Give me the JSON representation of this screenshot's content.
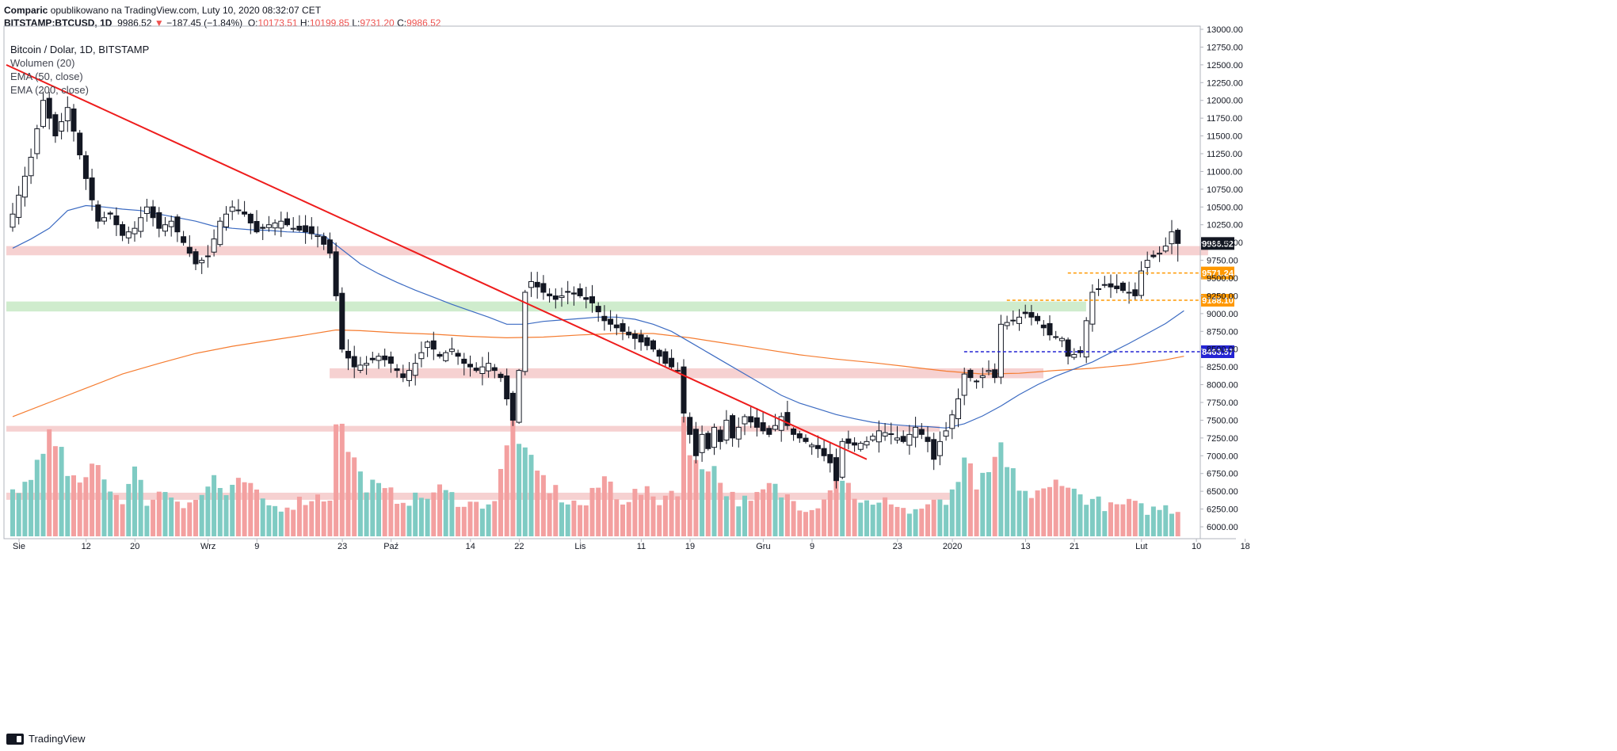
{
  "header": {
    "publisher": "Comparic",
    "published_text": "opublikowano na TradingView.com, Luty 10, 2020 08:32:07 CET",
    "symbol": "BITSTAMP:BTCUSD, 1D",
    "last": "9986.52",
    "arrow": "▼",
    "change": "−187.45 (−1.84%)",
    "o_label": "O:",
    "o": "10173.51",
    "h_label": "H:",
    "h": "10199.85",
    "l_label": "L:",
    "l": "9731.20",
    "c_label": "C:",
    "c": "9986.52"
  },
  "legend": {
    "title": "Bitcoin / Dolar, 1D, BITSTAMP",
    "volume": "Wolumen (20)",
    "ema50": "EMA (50, close)",
    "ema200": "EMA (200, close)"
  },
  "footer": {
    "brand": "TradingView"
  },
  "chart_data": {
    "type": "candlestick",
    "title": "Bitcoin / Dolar, 1D, BITSTAMP",
    "ylim": [
      5800,
      13000
    ],
    "y_ticks": [
      "13000.00",
      "12750.00",
      "12500.00",
      "12250.00",
      "12000.00",
      "11750.00",
      "11500.00",
      "11250.00",
      "11000.00",
      "10750.00",
      "10500.00",
      "10250.00",
      "10000.00",
      "9750.00",
      "9500.00",
      "9250.00",
      "9000.00",
      "8750.00",
      "8500.00",
      "8250.00",
      "8000.00",
      "7750.00",
      "7500.00",
      "7250.00",
      "7000.00",
      "6750.00",
      "6500.00",
      "6250.00",
      "6000.00"
    ],
    "x_ticks": [
      {
        "label": "Sie",
        "day": 0
      },
      {
        "label": "12",
        "day": 11
      },
      {
        "label": "20",
        "day": 19
      },
      {
        "label": "Wrz",
        "day": 31
      },
      {
        "label": "9",
        "day": 39
      },
      {
        "label": "23",
        "day": 53
      },
      {
        "label": "Paź",
        "day": 61
      },
      {
        "label": "14",
        "day": 74
      },
      {
        "label": "22",
        "day": 82
      },
      {
        "label": "Lis",
        "day": 92
      },
      {
        "label": "11",
        "day": 102
      },
      {
        "label": "19",
        "day": 110
      },
      {
        "label": "Gru",
        "day": 122
      },
      {
        "label": "9",
        "day": 130
      },
      {
        "label": "23",
        "day": 144
      },
      {
        "label": "2020",
        "day": 153
      },
      {
        "label": "13",
        "day": 165
      },
      {
        "label": "21",
        "day": 173
      },
      {
        "label": "Lut",
        "day": 184
      },
      {
        "label": "10",
        "day": 193
      },
      {
        "label": "18",
        "day": 201
      }
    ],
    "close_anchors": [
      [
        0,
        10400
      ],
      [
        3,
        11200
      ],
      [
        5,
        12000
      ],
      [
        7,
        11500
      ],
      [
        9,
        11900
      ],
      [
        12,
        10900
      ],
      [
        14,
        10300
      ],
      [
        16,
        10400
      ],
      [
        18,
        10100
      ],
      [
        20,
        10200
      ],
      [
        22,
        10500
      ],
      [
        24,
        10200
      ],
      [
        26,
        10300
      ],
      [
        28,
        10000
      ],
      [
        30,
        9700
      ],
      [
        32,
        9800
      ],
      [
        34,
        10300
      ],
      [
        36,
        10500
      ],
      [
        38,
        10400
      ],
      [
        40,
        10150
      ],
      [
        42,
        10250
      ],
      [
        44,
        10300
      ],
      [
        46,
        10200
      ],
      [
        48,
        10150
      ],
      [
        50,
        10100
      ],
      [
        52,
        9850
      ],
      [
        53,
        9250
      ],
      [
        54,
        8500
      ],
      [
        56,
        8250
      ],
      [
        58,
        8300
      ],
      [
        60,
        8400
      ],
      [
        62,
        8300
      ],
      [
        64,
        8100
      ],
      [
        66,
        8300
      ],
      [
        68,
        8600
      ],
      [
        70,
        8400
      ],
      [
        72,
        8500
      ],
      [
        74,
        8300
      ],
      [
        76,
        8200
      ],
      [
        78,
        8300
      ],
      [
        80,
        8100
      ],
      [
        81,
        7800
      ],
      [
        82,
        7500
      ],
      [
        83,
        8200
      ],
      [
        84,
        9300
      ],
      [
        85,
        9450
      ],
      [
        87,
        9300
      ],
      [
        89,
        9200
      ],
      [
        91,
        9300
      ],
      [
        93,
        9250
      ],
      [
        95,
        9150
      ],
      [
        97,
        8900
      ],
      [
        99,
        8800
      ],
      [
        101,
        8700
      ],
      [
        103,
        8600
      ],
      [
        105,
        8500
      ],
      [
        107,
        8300
      ],
      [
        109,
        8200
      ],
      [
        110,
        7600
      ],
      [
        111,
        7300
      ],
      [
        112,
        7000
      ],
      [
        113,
        7300
      ],
      [
        114,
        7100
      ],
      [
        115,
        7400
      ],
      [
        116,
        7200
      ],
      [
        117,
        7500
      ],
      [
        118,
        7250
      ],
      [
        120,
        7550
      ],
      [
        122,
        7400
      ],
      [
        124,
        7300
      ],
      [
        126,
        7550
      ],
      [
        128,
        7300
      ],
      [
        130,
        7200
      ],
      [
        132,
        7100
      ],
      [
        134,
        6900
      ],
      [
        135,
        6650
      ],
      [
        136,
        7200
      ],
      [
        138,
        7150
      ],
      [
        140,
        7200
      ],
      [
        142,
        7350
      ],
      [
        144,
        7300
      ],
      [
        146,
        7200
      ],
      [
        148,
        7400
      ],
      [
        150,
        7200
      ],
      [
        151,
        6950
      ],
      [
        152,
        7200
      ],
      [
        153,
        7350
      ],
      [
        155,
        7800
      ],
      [
        156,
        8150
      ],
      [
        158,
        8050
      ],
      [
        160,
        8200
      ],
      [
        161,
        8100
      ],
      [
        162,
        8850
      ],
      [
        164,
        8900
      ],
      [
        166,
        9000
      ],
      [
        168,
        8900
      ],
      [
        170,
        8700
      ],
      [
        172,
        8650
      ],
      [
        173,
        8400
      ],
      [
        175,
        8450
      ],
      [
        176,
        8900
      ],
      [
        177,
        9300
      ],
      [
        179,
        9400
      ],
      [
        181,
        9350
      ],
      [
        183,
        9300
      ],
      [
        184,
        9250
      ],
      [
        185,
        9600
      ],
      [
        186,
        9750
      ],
      [
        188,
        9850
      ],
      [
        189,
        9950
      ],
      [
        190,
        10150
      ],
      [
        191,
        9986.52
      ]
    ],
    "ema50": [
      [
        0,
        9920
      ],
      [
        3,
        10050
      ],
      [
        6,
        10200
      ],
      [
        9,
        10450
      ],
      [
        12,
        10520
      ],
      [
        15,
        10500
      ],
      [
        18,
        10470
      ],
      [
        21,
        10450
      ],
      [
        24,
        10400
      ],
      [
        27,
        10350
      ],
      [
        30,
        10300
      ],
      [
        33,
        10230
      ],
      [
        36,
        10200
      ],
      [
        39,
        10180
      ],
      [
        42,
        10170
      ],
      [
        45,
        10150
      ],
      [
        48,
        10140
      ],
      [
        51,
        10100
      ],
      [
        54,
        9900
      ],
      [
        57,
        9700
      ],
      [
        60,
        9560
      ],
      [
        63,
        9440
      ],
      [
        66,
        9330
      ],
      [
        69,
        9230
      ],
      [
        72,
        9130
      ],
      [
        75,
        9040
      ],
      [
        78,
        8950
      ],
      [
        81,
        8850
      ],
      [
        84,
        8850
      ],
      [
        87,
        8890
      ],
      [
        90,
        8910
      ],
      [
        93,
        8930
      ],
      [
        96,
        8950
      ],
      [
        99,
        8950
      ],
      [
        102,
        8920
      ],
      [
        105,
        8850
      ],
      [
        108,
        8750
      ],
      [
        111,
        8600
      ],
      [
        114,
        8450
      ],
      [
        117,
        8300
      ],
      [
        120,
        8150
      ],
      [
        123,
        8000
      ],
      [
        126,
        7850
      ],
      [
        129,
        7740
      ],
      [
        132,
        7660
      ],
      [
        135,
        7580
      ],
      [
        138,
        7520
      ],
      [
        141,
        7470
      ],
      [
        144,
        7440
      ],
      [
        147,
        7420
      ],
      [
        150,
        7410
      ],
      [
        153,
        7390
      ],
      [
        156,
        7450
      ],
      [
        159,
        7560
      ],
      [
        162,
        7700
      ],
      [
        165,
        7860
      ],
      [
        168,
        8000
      ],
      [
        171,
        8120
      ],
      [
        174,
        8220
      ],
      [
        177,
        8320
      ],
      [
        180,
        8450
      ],
      [
        183,
        8580
      ],
      [
        186,
        8720
      ],
      [
        189,
        8860
      ],
      [
        192,
        9040
      ]
    ],
    "ema200": [
      [
        0,
        7550
      ],
      [
        6,
        7750
      ],
      [
        12,
        7950
      ],
      [
        18,
        8150
      ],
      [
        24,
        8300
      ],
      [
        30,
        8440
      ],
      [
        36,
        8540
      ],
      [
        42,
        8620
      ],
      [
        48,
        8700
      ],
      [
        53,
        8770
      ],
      [
        57,
        8760
      ],
      [
        63,
        8730
      ],
      [
        69,
        8710
      ],
      [
        75,
        8680
      ],
      [
        81,
        8660
      ],
      [
        87,
        8670
      ],
      [
        93,
        8700
      ],
      [
        99,
        8720
      ],
      [
        105,
        8720
      ],
      [
        111,
        8660
      ],
      [
        117,
        8580
      ],
      [
        123,
        8500
      ],
      [
        129,
        8420
      ],
      [
        135,
        8360
      ],
      [
        141,
        8310
      ],
      [
        147,
        8250
      ],
      [
        153,
        8190
      ],
      [
        159,
        8150
      ],
      [
        165,
        8160
      ],
      [
        171,
        8200
      ],
      [
        177,
        8230
      ],
      [
        183,
        8280
      ],
      [
        189,
        8350
      ],
      [
        192,
        8400
      ]
    ],
    "volume_anchors": [
      [
        0,
        0.35
      ],
      [
        3,
        0.42
      ],
      [
        5,
        0.78
      ],
      [
        7,
        0.65
      ],
      [
        9,
        0.5
      ],
      [
        11,
        0.35
      ],
      [
        14,
        0.62
      ],
      [
        16,
        0.35
      ],
      [
        18,
        0.3
      ],
      [
        20,
        0.48
      ],
      [
        22,
        0.28
      ],
      [
        25,
        0.35
      ],
      [
        28,
        0.26
      ],
      [
        31,
        0.3
      ],
      [
        33,
        0.46
      ],
      [
        35,
        0.3
      ],
      [
        38,
        0.42
      ],
      [
        40,
        0.3
      ],
      [
        43,
        0.22
      ],
      [
        46,
        0.25
      ],
      [
        49,
        0.3
      ],
      [
        52,
        0.3
      ],
      [
        53,
        1.0
      ],
      [
        54,
        0.78
      ],
      [
        55,
        0.7
      ],
      [
        57,
        0.45
      ],
      [
        60,
        0.35
      ],
      [
        63,
        0.3
      ],
      [
        66,
        0.28
      ],
      [
        70,
        0.35
      ],
      [
        73,
        0.28
      ],
      [
        76,
        0.24
      ],
      [
        79,
        0.28
      ],
      [
        81,
        0.65
      ],
      [
        82,
        0.85
      ],
      [
        83,
        0.82
      ],
      [
        84,
        0.58
      ],
      [
        85,
        0.52
      ],
      [
        86,
        0.48
      ],
      [
        88,
        0.38
      ],
      [
        91,
        0.26
      ],
      [
        94,
        0.24
      ],
      [
        97,
        0.45
      ],
      [
        100,
        0.28
      ],
      [
        103,
        0.34
      ],
      [
        106,
        0.28
      ],
      [
        109,
        0.38
      ],
      [
        110,
        0.9
      ],
      [
        111,
        0.55
      ],
      [
        112,
        0.6
      ],
      [
        113,
        0.58
      ],
      [
        114,
        0.6
      ],
      [
        116,
        0.42
      ],
      [
        118,
        0.3
      ],
      [
        121,
        0.25
      ],
      [
        124,
        0.38
      ],
      [
        127,
        0.3
      ],
      [
        130,
        0.22
      ],
      [
        133,
        0.28
      ],
      [
        135,
        0.55
      ],
      [
        136,
        0.45
      ],
      [
        138,
        0.32
      ],
      [
        141,
        0.22
      ],
      [
        144,
        0.28
      ],
      [
        147,
        0.18
      ],
      [
        150,
        0.24
      ],
      [
        153,
        0.25
      ],
      [
        154,
        0.38
      ],
      [
        155,
        0.35
      ],
      [
        156,
        0.55
      ],
      [
        158,
        0.4
      ],
      [
        160,
        0.42
      ],
      [
        162,
        0.7
      ],
      [
        163,
        0.5
      ],
      [
        165,
        0.4
      ],
      [
        167,
        0.3
      ],
      [
        170,
        0.35
      ],
      [
        172,
        0.48
      ],
      [
        174,
        0.33
      ],
      [
        177,
        0.28
      ],
      [
        180,
        0.22
      ],
      [
        183,
        0.25
      ],
      [
        186,
        0.2
      ],
      [
        189,
        0.22
      ],
      [
        192,
        0.18
      ]
    ],
    "zones": [
      {
        "color": "#f4c9c9",
        "from_day": 0,
        "to_day": 197,
        "low": 9820,
        "high": 9950
      },
      {
        "color": "#c7e9c4",
        "from_day": 0,
        "to_day": 177,
        "low": 9030,
        "high": 9170
      },
      {
        "color": "#f4c9c9",
        "from_day": 53,
        "to_day": 170,
        "low": 8090,
        "high": 8230
      },
      {
        "color": "#f4c9c9",
        "from_day": 0,
        "to_day": 153,
        "low": 7340,
        "high": 7420
      },
      {
        "color": "#f4c9c9",
        "from_day": 0,
        "to_day": 155,
        "low": 6380,
        "high": 6480
      }
    ],
    "trendline": {
      "from": [
        0,
        12500
      ],
      "to": [
        140,
        6950
      ],
      "color": "#ee1c1c"
    },
    "levels": [
      {
        "label": "9571.24",
        "value": 9571.24,
        "color": "#ff9800",
        "from_day": 174,
        "style": "dashed"
      },
      {
        "label": "9188.10",
        "value": 9188.1,
        "color": "#ff9800",
        "from_day": 164,
        "style": "dashed"
      },
      {
        "label": "8463.57",
        "value": 8463.57,
        "color": "#2424d4",
        "from_day": 157,
        "style": "dashed"
      }
    ],
    "last_price": {
      "label": "9986.52",
      "value": 9986.52
    }
  }
}
